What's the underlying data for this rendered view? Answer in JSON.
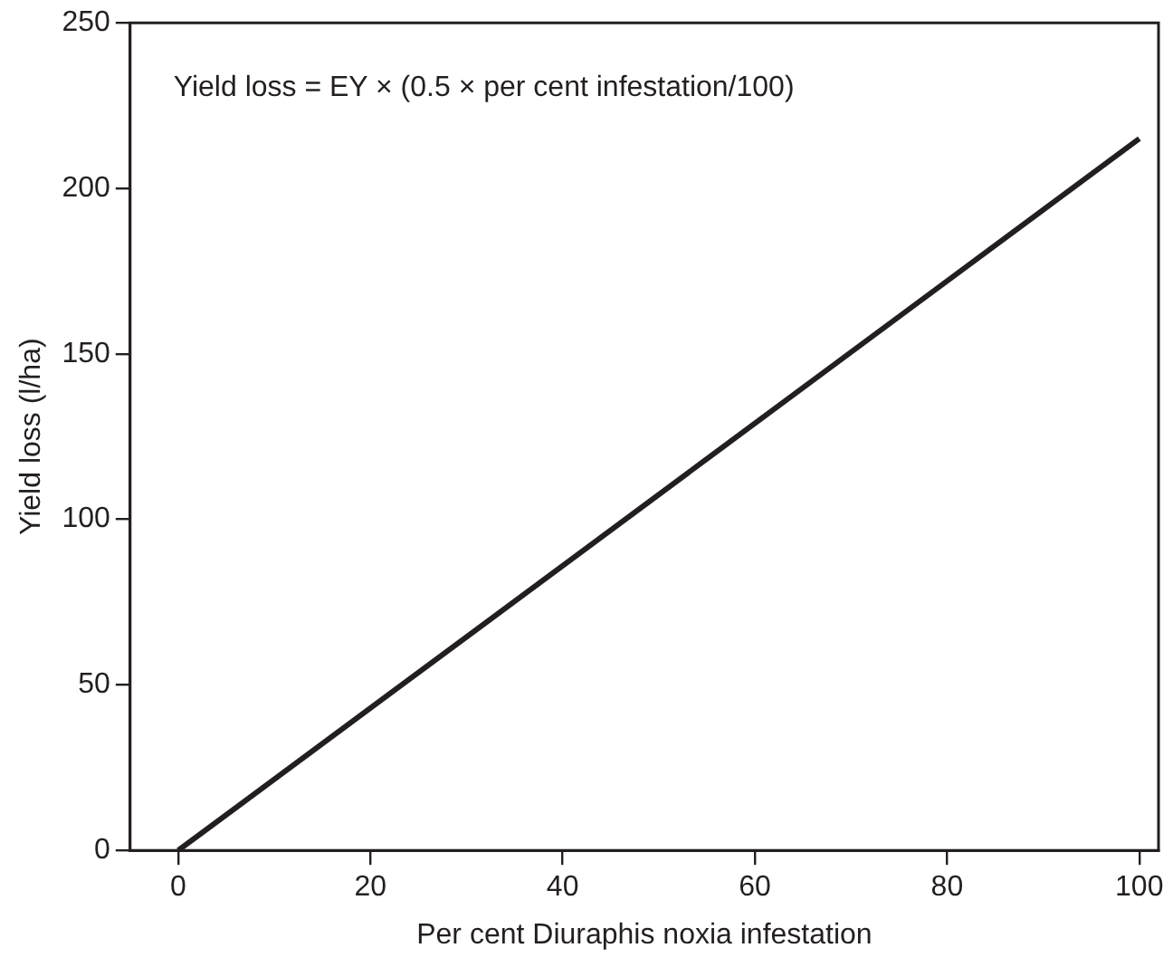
{
  "chart_data": {
    "type": "line",
    "xlabel": "Per cent Diuraphis noxia infestation",
    "ylabel": "Yield loss (l/ha)",
    "x": [
      0,
      100
    ],
    "series": [
      {
        "color": "#231f20",
        "values": [
          0,
          215
        ]
      }
    ],
    "xlim": [
      -5,
      102
    ],
    "xticks": [
      0,
      20,
      40,
      60,
      80,
      100
    ],
    "ylim": [
      0,
      250
    ],
    "yticks": [
      0,
      50,
      100,
      150,
      200,
      250
    ],
    "grid": false,
    "legend": false,
    "marker": "none",
    "line_style": "solid",
    "annotations": [
      "Yield loss = EY × (0.5 × per cent infestation/100)"
    ]
  }
}
